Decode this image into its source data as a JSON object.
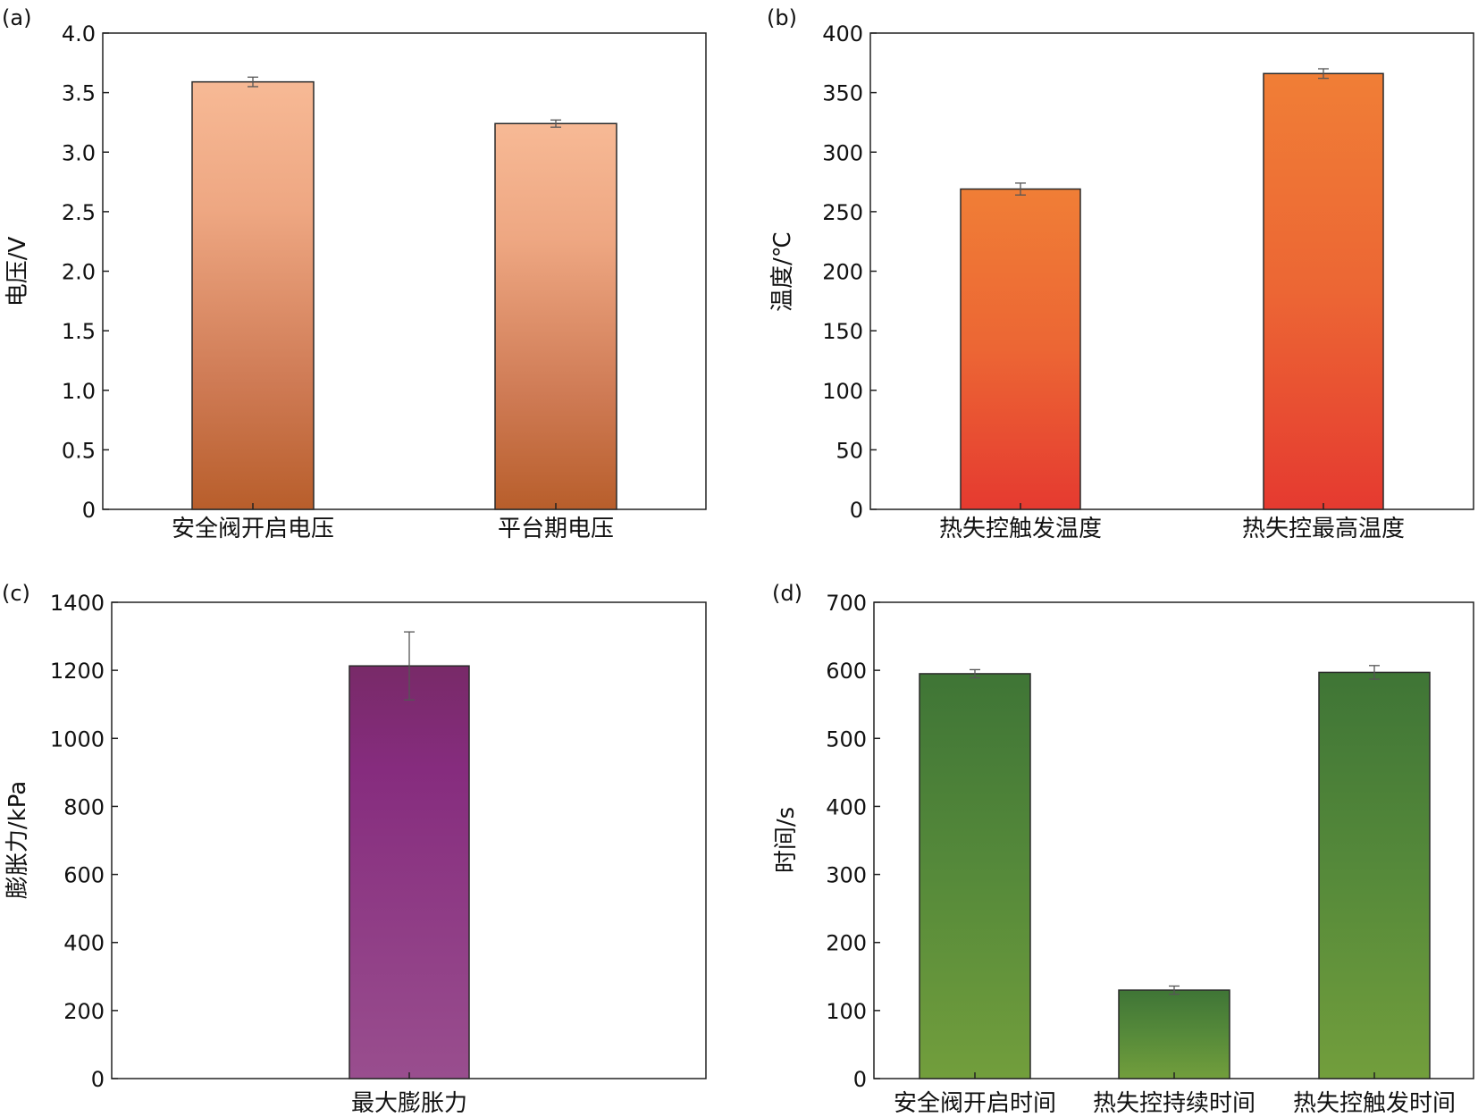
{
  "chart_data": [
    {
      "panel": "(a)",
      "type": "bar",
      "categories": [
        "安全阀开启电压",
        "平台期电压"
      ],
      "values": [
        3.59,
        3.24
      ],
      "errors": [
        0.04,
        0.03
      ],
      "ylabel": "电压/V",
      "ylim": [
        0,
        4.0
      ],
      "yticks": [
        "0",
        "0.5",
        "1.0",
        "1.5",
        "2.0",
        "2.5",
        "3.0",
        "3.5",
        "4.0"
      ],
      "colors": {
        "top": "#f7b995",
        "bottom": "#b85e2b"
      }
    },
    {
      "panel": "(b)",
      "type": "bar",
      "categories": [
        "热失控触发温度",
        "热失控最高温度"
      ],
      "values": [
        269,
        366
      ],
      "errors": [
        5,
        4
      ],
      "ylabel": "温度/℃",
      "ylim": [
        0,
        400
      ],
      "yticks": [
        "0",
        "50",
        "100",
        "150",
        "200",
        "250",
        "300",
        "350",
        "400"
      ],
      "colors": {
        "top": "#f07e36",
        "bottom": "#e53a30"
      }
    },
    {
      "panel": "(c)",
      "type": "bar",
      "categories": [
        "最大膨胀力"
      ],
      "values": [
        1213
      ],
      "errors": [
        100
      ],
      "ylabel": "膨胀力/kPa",
      "ylim": [
        0,
        1400
      ],
      "yticks": [
        "0",
        "200",
        "400",
        "600",
        "800",
        "1000",
        "1200",
        "1400"
      ],
      "colors": {
        "top": "#782a68",
        "mid": "#862c7e",
        "bottom": "#994e8e"
      }
    },
    {
      "panel": "(d)",
      "type": "bar",
      "categories": [
        "安全阀开启时间",
        "热失控持续时间",
        "热失控触发时间"
      ],
      "values": [
        595,
        130,
        597
      ],
      "errors": [
        6,
        6,
        10
      ],
      "ylabel": "时间/s",
      "ylim": [
        0,
        700
      ],
      "yticks": [
        "0",
        "100",
        "200",
        "300",
        "400",
        "500",
        "600",
        "700"
      ],
      "colors": {
        "top": "#3f7536",
        "bottom": "#729e3c"
      }
    }
  ]
}
